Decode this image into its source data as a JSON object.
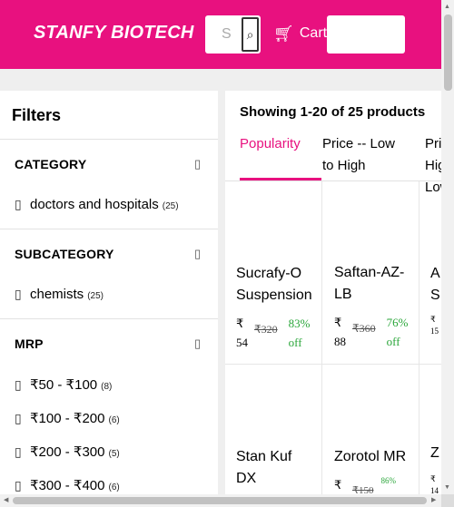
{
  "header": {
    "brand": "STANFY BIOTECH",
    "search_placeholder": "S",
    "search_icon": "search-icon",
    "cart_icon": "cart-icon",
    "cart_label": "Cart",
    "accent_color": "#e8117f"
  },
  "filters": {
    "title": "Filters",
    "sections": [
      {
        "heading": "CATEGORY",
        "items": [
          {
            "label": "doctors and hospitals",
            "count": "(25)"
          }
        ]
      },
      {
        "heading": "SUBCATEGORY",
        "items": [
          {
            "label": "chemists",
            "count": "(25)"
          }
        ]
      },
      {
        "heading": "MRP",
        "items": [
          {
            "label": "₹50 - ₹100",
            "count": "(8)"
          },
          {
            "label": "₹100 - ₹200",
            "count": "(6)"
          },
          {
            "label": "₹200 - ₹300",
            "count": "(5)"
          },
          {
            "label": "₹300 - ₹400",
            "count": "(6)"
          }
        ]
      }
    ]
  },
  "results": {
    "showing": "Showing 1-20 of 25 products",
    "sort_tabs": [
      {
        "label": "Popularity",
        "active": true
      },
      {
        "label": "Price -- Low to High",
        "active": false
      },
      {
        "label": "Price -- High to Low",
        "active": false
      }
    ],
    "products": [
      {
        "name": "Sucrafy-O Suspension",
        "price_symbol": "₹",
        "price": "54",
        "mrp": "₹320",
        "off": "83% off"
      },
      {
        "name": "Saftan-AZ-LB",
        "price_symbol": "₹",
        "price": "88",
        "mrp": "₹360",
        "off": "76% off"
      },
      {
        "name": "A S",
        "price_symbol": "₹",
        "price": "15"
      },
      {
        "name": "Stan Kuf DX"
      },
      {
        "name": "Zorotol MR",
        "price_symbol": "₹",
        "mrp": "₹150",
        "off": "86%"
      },
      {
        "name": "Z",
        "price_symbol": "₹",
        "price": "14"
      }
    ]
  }
}
